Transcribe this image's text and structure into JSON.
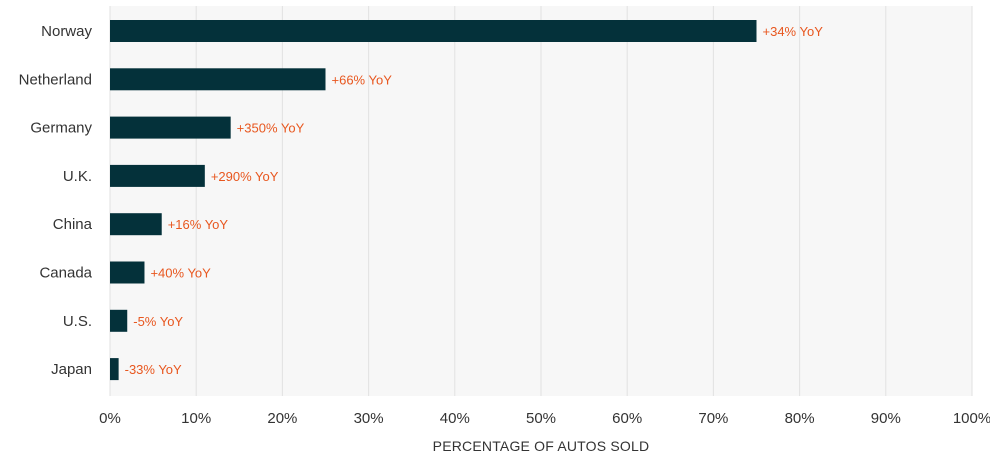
{
  "chart_data": {
    "type": "bar",
    "orientation": "horizontal",
    "categories": [
      "Norway",
      "Netherland",
      "Germany",
      "U.K.",
      "China",
      "Canada",
      "U.S.",
      "Japan"
    ],
    "values": [
      75,
      25,
      14,
      11,
      6,
      4,
      2,
      1
    ],
    "data_labels": [
      "+34% YoY",
      "+66% YoY",
      "+350% YoY",
      "+290% YoY",
      "+16% YoY",
      "+40% YoY",
      "-5% YoY",
      "-33% YoY"
    ],
    "title": "",
    "xlabel": "PERCENTAGE OF AUTOS SOLD",
    "ylabel": "",
    "xlim": [
      0,
      100
    ],
    "xticks": [
      "0%",
      "10%",
      "20%",
      "30%",
      "40%",
      "50%",
      "60%",
      "70%",
      "80%",
      "90%",
      "100%"
    ],
    "grid": "vertical",
    "colors": {
      "bar": "#04313a",
      "data_label": "#e8571f",
      "plot_background": "#f7f7f7",
      "gridline": "#e2e2e2"
    }
  }
}
